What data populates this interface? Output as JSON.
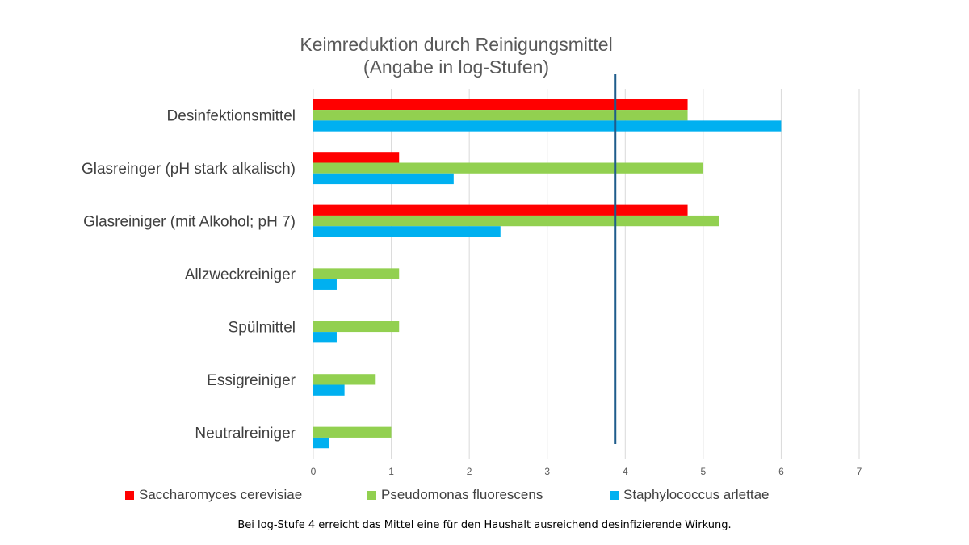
{
  "chart_data": {
    "type": "bar",
    "orientation": "horizontal",
    "title": "Keimreduktion durch Reinigungsmittel",
    "subtitle": "(Angabe in log-Stufen)",
    "categories": [
      "Desinfektionsmittel",
      "Glasreinger (pH stark alkalisch)",
      "Glasreiniger (mit Alkohol; pH 7)",
      "Allzweckreiniger",
      "Spülmittel",
      "Essigreiniger",
      "Neutralreiniger"
    ],
    "series": [
      {
        "name": "Saccharomyces cerevisiae",
        "color": "#ff0000",
        "values": [
          4.8,
          1.1,
          4.8,
          0,
          0,
          0,
          0
        ]
      },
      {
        "name": "Pseudomonas fluorescens",
        "color": "#92d050",
        "values": [
          4.8,
          5.0,
          5.2,
          1.1,
          1.1,
          0.8,
          1.0
        ]
      },
      {
        "name": "Staphylococcus arlettae",
        "color": "#00b0f0",
        "values": [
          6.0,
          1.8,
          2.4,
          0.3,
          0.3,
          0.4,
          0.2
        ]
      }
    ],
    "xlim": [
      0,
      7
    ],
    "xticks": [
      "0",
      "1",
      "2",
      "3",
      "4",
      "5",
      "6",
      "7"
    ],
    "grid": true,
    "reference_line": {
      "value": 3.87,
      "color": "#1f5c8b"
    },
    "legend_position": "bottom",
    "footnote": "Bei log-Stufe 4 erreicht das Mittel eine für den Haushalt ausreichend desinfizierende Wirkung."
  }
}
